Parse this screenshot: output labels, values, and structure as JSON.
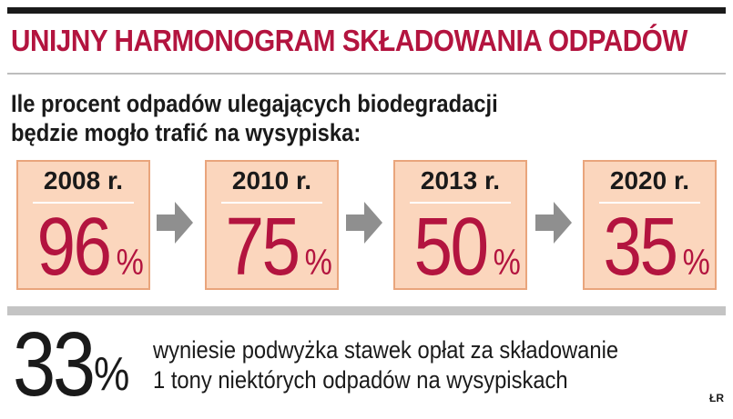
{
  "title": "UNIJNY HARMONOGRAM SKŁADOWANIA ODPADÓW",
  "subtitle": {
    "line1": "Ile procent odpadów ulegających biodegradacji",
    "line2": "będzie mogło trafić na wysypiska:"
  },
  "chart_data": {
    "type": "table",
    "categories": [
      "2008 r.",
      "2010 r.",
      "2013 r.",
      "2020 r."
    ],
    "values": [
      96,
      75,
      50,
      35
    ],
    "unit": "%"
  },
  "items": [
    {
      "year": "2008 r.",
      "value": "96"
    },
    {
      "year": "2010 r.",
      "value": "75"
    },
    {
      "year": "2013 r.",
      "value": "50"
    },
    {
      "year": "2020 r.",
      "value": "35"
    }
  ],
  "percent_sign": "%",
  "footer": {
    "value": "33",
    "percent_sign": "%",
    "line1": "wyniesie podwyżka stawek opłat za składowanie",
    "line2": "1 tony niektórych odpadów na wysypiskach"
  },
  "credit": "ŁR",
  "colors": {
    "accent": "#b3143f",
    "box_fill": "#fbd6bd",
    "box_border": "#e9a57c",
    "arrow": "#8f8f8f"
  }
}
